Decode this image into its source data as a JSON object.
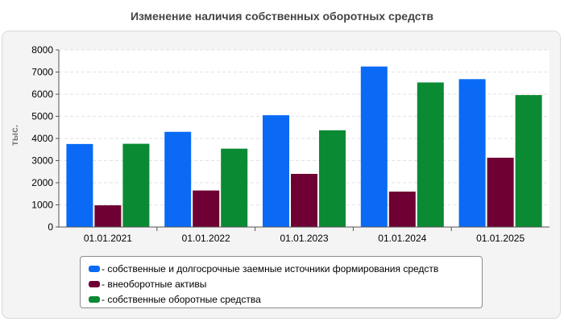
{
  "title": "Изменение наличия собственных оборотных средств",
  "chart_data": {
    "type": "bar",
    "categories": [
      "01.01.2021",
      "01.01.2022",
      "01.01.2023",
      "01.01.2024",
      "01.01.2025"
    ],
    "ylabel": "тыс.",
    "xlabel": "",
    "ylim": [
      0,
      8000
    ],
    "yticks": [
      0,
      1000,
      2000,
      3000,
      4000,
      5000,
      6000,
      7000,
      8000
    ],
    "grid": true,
    "legend_position": "bottom",
    "series": [
      {
        "name": "собственные и долгосрочные заемные источники формирования средств",
        "color": "#0a6af5",
        "values": [
          3750,
          4300,
          5050,
          7250,
          6680
        ]
      },
      {
        "name": "внеоборотные активы",
        "color": "#6e0033",
        "values": [
          980,
          1650,
          2400,
          1600,
          3130
        ]
      },
      {
        "name": "собственные оборотные средства",
        "color": "#0a8a32",
        "values": [
          3760,
          3540,
          4370,
          6530,
          5960
        ]
      }
    ]
  }
}
